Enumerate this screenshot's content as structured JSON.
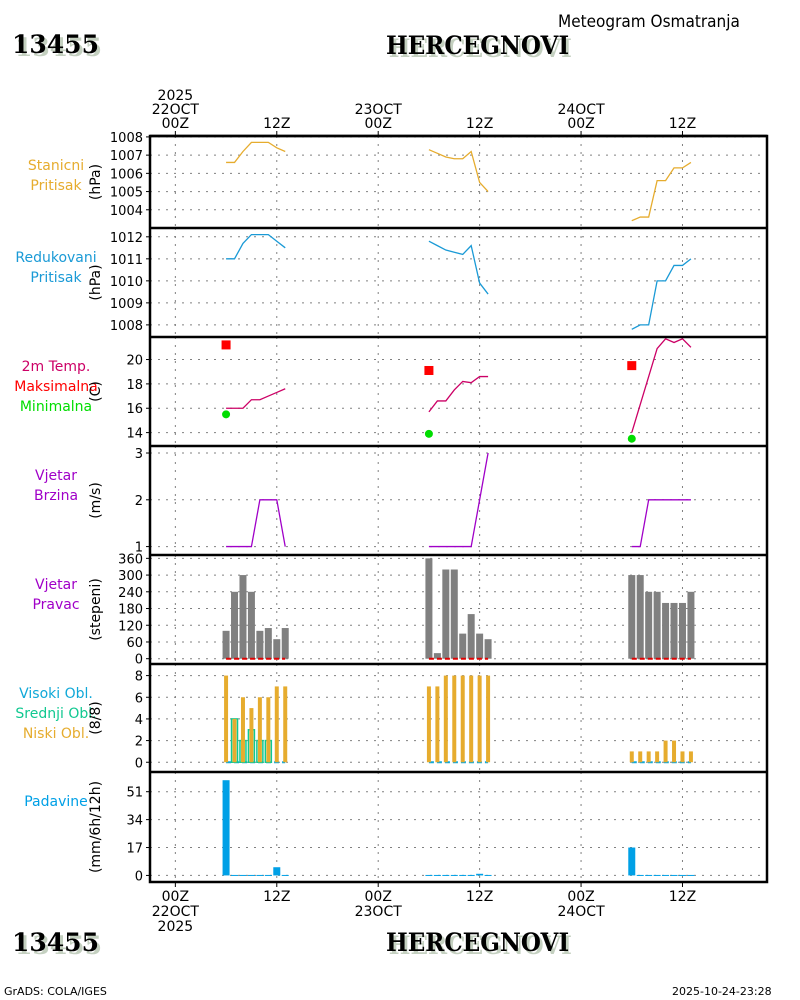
{
  "header": {
    "station_id": "13455",
    "station_name": "HERCEGNOVI",
    "subtitle": "Meteogram Osmatranja"
  },
  "footer": {
    "station_id": "13455",
    "station_name": "HERCEGNOVI",
    "credit": "GrADS: COLA/IGES",
    "timestamp": "2025-10-24-23:28"
  },
  "colors": {
    "station_pressure": "#e6ac2e",
    "reduced_pressure": "#1a9ad6",
    "temperature": "#cc0066",
    "tmax": "#ff0000",
    "tmin": "#00dd00",
    "wind": "#a000c8",
    "wind_dir_bar": "#808080",
    "wind_dir_line": "#e00000",
    "high_cloud": "#10a8d8",
    "mid_cloud": "#10c890",
    "low_cloud": "#e6ac2e",
    "precip": "#00a0e6"
  },
  "chart_data": {
    "type": "line",
    "title": "HERCEGNOVI",
    "subtitle": "Meteogram Osmatranja",
    "x_axis": {
      "unit": "hours since 2025-10-22 00Z",
      "range": [
        -3,
        70
      ],
      "top_ticks": [
        {
          "hour": 0,
          "lines": [
            "2025",
            "22OCT",
            "00Z"
          ]
        },
        {
          "hour": 12,
          "lines": [
            "12Z"
          ]
        },
        {
          "hour": 24,
          "lines": [
            "23OCT",
            "00Z"
          ]
        },
        {
          "hour": 36,
          "lines": [
            "12Z"
          ]
        },
        {
          "hour": 48,
          "lines": [
            "24OCT",
            "00Z"
          ]
        },
        {
          "hour": 60,
          "lines": [
            "12Z"
          ]
        }
      ],
      "bottom_ticks": [
        {
          "hour": 0,
          "lines": [
            "00Z",
            "22OCT",
            "2025"
          ]
        },
        {
          "hour": 12,
          "lines": [
            "12Z"
          ]
        },
        {
          "hour": 24,
          "lines": [
            "00Z",
            "23OCT"
          ]
        },
        {
          "hour": 36,
          "lines": [
            "12Z"
          ]
        },
        {
          "hour": 48,
          "lines": [
            "00Z",
            "24OCT"
          ]
        },
        {
          "hour": 60,
          "lines": [
            "12Z"
          ]
        }
      ],
      "grid": true
    },
    "hours": [
      [
        6,
        7,
        8,
        9,
        10,
        11,
        12,
        13
      ],
      [
        30,
        31,
        32,
        33,
        34,
        35,
        36,
        37
      ],
      [
        54,
        55,
        56,
        57,
        58,
        59,
        60,
        61
      ]
    ],
    "panels": [
      {
        "id": "station-pressure",
        "labels": [
          {
            "text": "Stanicni",
            "color_key": "station_pressure"
          },
          {
            "text": "Pritisak",
            "color_key": "station_pressure"
          }
        ],
        "ylabel": "(hPa)",
        "ylim": [
          1003,
          1008.05
        ],
        "yticks": [
          1004,
          1005,
          1006,
          1007,
          1008
        ],
        "series": [
          {
            "name": "Stanicni Pritisak",
            "kind": "line",
            "color_key": "station_pressure",
            "values": [
              [
                1006.6,
                1006.6,
                1007.2,
                1007.7,
                1007.7,
                1007.7,
                1007.4,
                1007.2
              ],
              [
                1007.3,
                1007.1,
                1006.9,
                1006.8,
                1006.8,
                1007.2,
                1005.5,
                1005.0
              ],
              [
                1003.4,
                1003.6,
                1003.6,
                1005.6,
                1005.6,
                1006.3,
                1006.3,
                1006.6
              ]
            ]
          }
        ]
      },
      {
        "id": "reduced-pressure",
        "labels": [
          {
            "text": "Redukovani",
            "color_key": "reduced_pressure"
          },
          {
            "text": "Pritisak",
            "color_key": "reduced_pressure"
          }
        ],
        "ylabel": "(hPa)",
        "ylim": [
          1007.45,
          1012.4
        ],
        "yticks": [
          1008,
          1009,
          1010,
          1011,
          1012
        ],
        "series": [
          {
            "name": "Redukovani Pritisak",
            "kind": "line",
            "color_key": "reduced_pressure",
            "values": [
              [
                1011.0,
                1011.0,
                1011.7,
                1012.1,
                1012.1,
                1012.1,
                1011.8,
                1011.5
              ],
              [
                1011.8,
                1011.6,
                1011.4,
                1011.3,
                1011.2,
                1011.6,
                1009.9,
                1009.4
              ],
              [
                1007.8,
                1008.0,
                1008.0,
                1010.0,
                1010.0,
                1010.7,
                1010.7,
                1011.0
              ]
            ]
          }
        ]
      },
      {
        "id": "temperature",
        "labels": [
          {
            "text": "2m Temp.",
            "color_key": "temperature"
          },
          {
            "text": "Maksimalna",
            "color_key": "tmax"
          },
          {
            "text": "Minimalna",
            "color_key": "tmin"
          }
        ],
        "ylabel": "(C)",
        "ylim": [
          12.9,
          21.85
        ],
        "yticks": [
          14,
          16,
          18,
          20
        ],
        "series": [
          {
            "name": "2m Temp.",
            "kind": "line",
            "color_key": "temperature",
            "values": [
              [
                16.0,
                16.0,
                16.0,
                16.7,
                16.7,
                17.0,
                17.3,
                17.6
              ],
              [
                15.7,
                16.6,
                16.6,
                17.5,
                18.2,
                18.1,
                18.6,
                18.6
              ],
              [
                14.0,
                16.3,
                18.6,
                20.9,
                21.7,
                21.4,
                21.7,
                21.0
              ]
            ]
          },
          {
            "name": "Maksimalna",
            "kind": "square",
            "color_key": "tmax",
            "points": [
              {
                "hour": 6,
                "value": 21.2
              },
              {
                "hour": 30,
                "value": 19.1
              },
              {
                "hour": 54,
                "value": 19.5
              }
            ]
          },
          {
            "name": "Minimalna",
            "kind": "dot",
            "color_key": "tmin",
            "points": [
              {
                "hour": 6,
                "value": 15.5
              },
              {
                "hour": 30,
                "value": 13.9
              },
              {
                "hour": 54,
                "value": 13.5
              }
            ]
          }
        ]
      },
      {
        "id": "wind-speed",
        "labels": [
          {
            "text": "Vjetar",
            "color_key": "wind"
          },
          {
            "text": "Brzina",
            "color_key": "wind"
          }
        ],
        "ylabel": "(m/s)",
        "ylim": [
          0.82,
          3.15
        ],
        "yticks": [
          1,
          2,
          3
        ],
        "series": [
          {
            "name": "Vjetar Brzina",
            "kind": "line",
            "color_key": "wind",
            "values": [
              [
                1,
                1,
                1,
                1,
                2,
                2,
                2,
                1
              ],
              [
                1,
                1,
                1,
                1,
                1,
                1,
                2,
                3
              ],
              [
                1,
                1,
                2,
                2,
                2,
                2,
                2,
                2
              ]
            ]
          }
        ]
      },
      {
        "id": "wind-direction",
        "labels": [
          {
            "text": "Vjetar",
            "color_key": "wind"
          },
          {
            "text": "Pravac",
            "color_key": "wind"
          }
        ],
        "ylabel": "(stepeni)",
        "ylim": [
          -19,
          372
        ],
        "yticks": [
          0,
          60,
          120,
          180,
          240,
          300,
          360
        ],
        "series": [
          {
            "name": "Vjetar Pravac",
            "kind": "bar",
            "color_key": "wind_dir_bar",
            "values": [
              [
                100,
                240,
                300,
                240,
                100,
                110,
                70,
                110
              ],
              [
                360,
                20,
                320,
                320,
                90,
                160,
                90,
                70
              ],
              [
                300,
                300,
                240,
                240,
                200,
                200,
                200,
                240
              ]
            ]
          },
          {
            "name": "baseline",
            "kind": "dashline",
            "color_key": "wind_dir_line",
            "values": [
              [
                0,
                0,
                0,
                0,
                0,
                0,
                0,
                0
              ],
              [
                0,
                0,
                0,
                0,
                0,
                0,
                0,
                0
              ],
              [
                0,
                0,
                0,
                0,
                0,
                0,
                0,
                0
              ]
            ]
          }
        ]
      },
      {
        "id": "clouds",
        "labels": [
          {
            "text": "Visoki Obl.",
            "color_key": "high_cloud"
          },
          {
            "text": "Srednji Obl.",
            "color_key": "mid_cloud"
          },
          {
            "text": "Niski Obl.",
            "color_key": "low_cloud"
          }
        ],
        "ylabel": "(8/8)",
        "ylim": [
          -0.9,
          9.07
        ],
        "yticks": [
          0,
          2,
          4,
          6,
          8
        ],
        "series": [
          {
            "name": "Visoki Obl.",
            "kind": "dashline",
            "color_key": "high_cloud",
            "values": [
              [
                0,
                0,
                0,
                0,
                0,
                0,
                0,
                0
              ],
              [
                0,
                0,
                0,
                0,
                0,
                0,
                0,
                0
              ],
              [
                0,
                0,
                0,
                0,
                0,
                0,
                0,
                0
              ]
            ]
          },
          {
            "name": "Srednji Obl.",
            "kind": "outlinebar",
            "color_key": "mid_cloud",
            "values": [
              [
                0,
                4,
                2,
                3,
                2,
                2,
                0,
                0
              ],
              [
                0,
                0,
                0,
                0,
                0,
                0,
                0,
                0
              ],
              [
                0,
                0,
                0,
                0,
                0,
                0,
                0,
                0
              ]
            ]
          },
          {
            "name": "Niski Obl.",
            "kind": "narrowbar",
            "color_key": "low_cloud",
            "values": [
              [
                8,
                4,
                6,
                5,
                6,
                6,
                7,
                7
              ],
              [
                7,
                7,
                8,
                8,
                8,
                8,
                8,
                8
              ],
              [
                1,
                1,
                1,
                1,
                2,
                2,
                1,
                1
              ]
            ]
          }
        ]
      },
      {
        "id": "precipitation",
        "labels": [
          {
            "text": "Padavine",
            "color_key": "precip"
          }
        ],
        "ylabel": "(mm/6h/12h)",
        "ylim": [
          -4,
          63
        ],
        "yticks": [
          0,
          17,
          34,
          51
        ],
        "series": [
          {
            "name": "Padavine",
            "kind": "bar",
            "color_key": "precip",
            "values": [
              [
                58,
                0.3,
                0.3,
                0.3,
                0.3,
                0.3,
                5,
                0.3
              ],
              [
                0.3,
                0.3,
                0.3,
                0.3,
                0.3,
                0.3,
                1,
                0.3
              ],
              [
                17,
                0.3,
                0.3,
                0.3,
                0.3,
                0.3,
                0.3,
                0.3
              ]
            ]
          }
        ]
      }
    ]
  }
}
